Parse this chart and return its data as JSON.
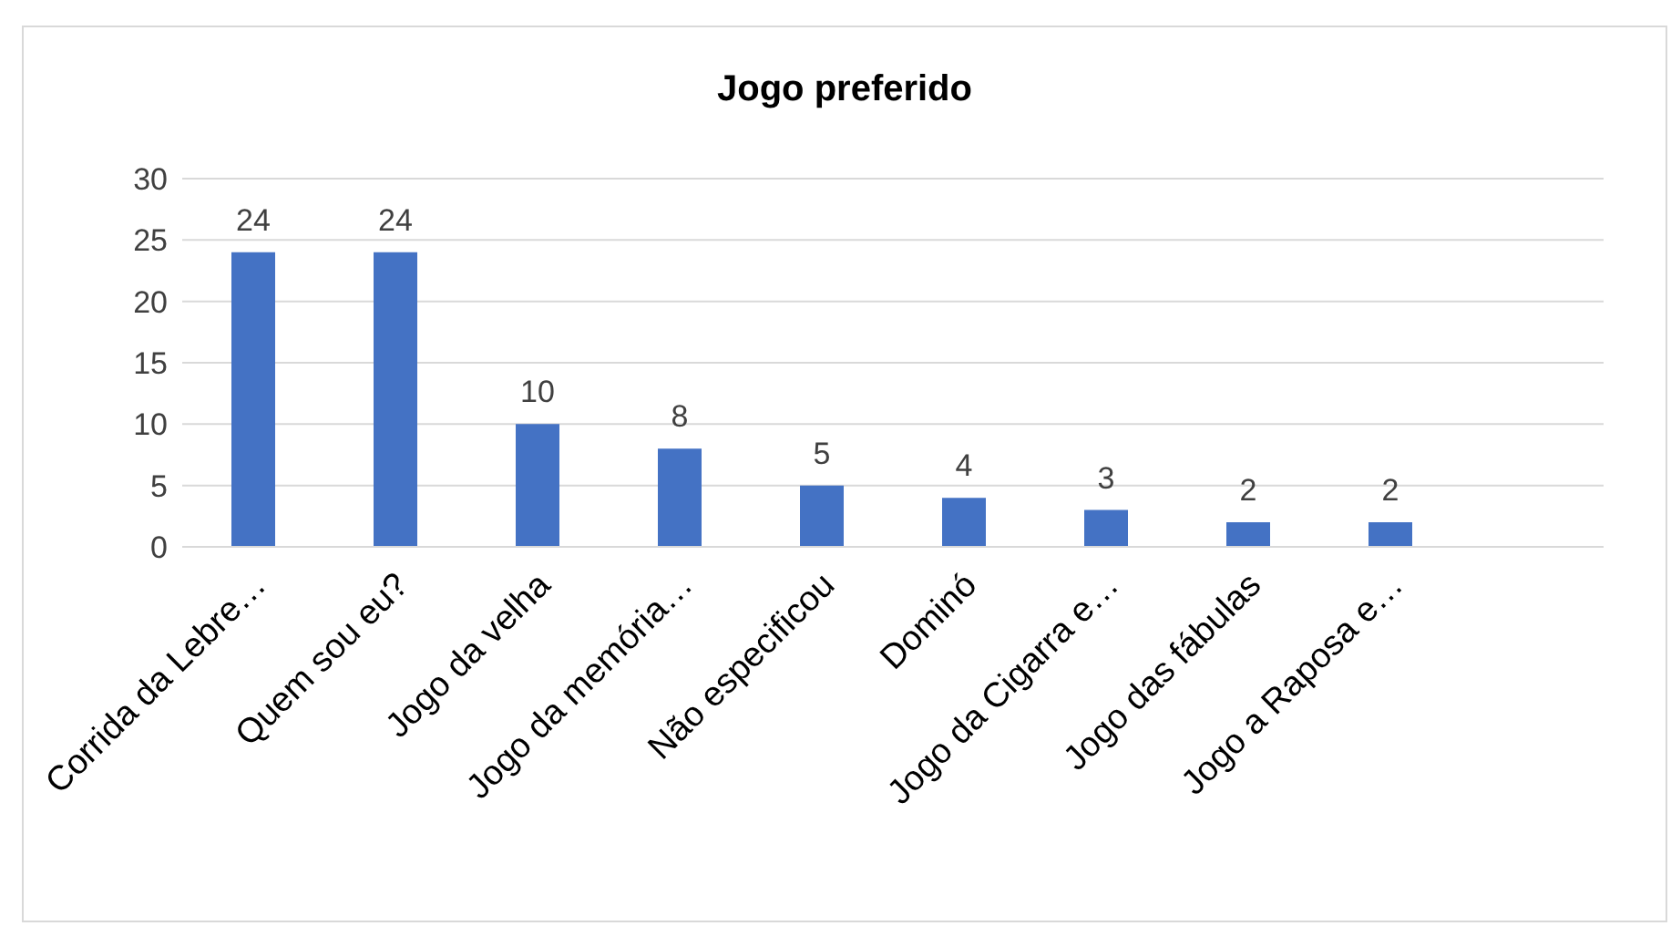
{
  "chart_data": {
    "type": "bar",
    "title": "Jogo preferido",
    "categories": [
      "Corrida da Lebre…",
      "Quem sou eu?",
      "Jogo da velha",
      "Jogo da memória…",
      "Não especificou",
      "Dominó",
      "Jogo da Cigarra e…",
      "Jogo das fábulas",
      "Jogo a Raposa e…",
      null
    ],
    "values": [
      24,
      24,
      10,
      8,
      5,
      4,
      3,
      2,
      2,
      null
    ],
    "color": "#4472c4",
    "ylim": [
      0,
      30
    ],
    "yticks": [
      0,
      5,
      10,
      15,
      20,
      25,
      30
    ],
    "grid": "y",
    "data_labels": true,
    "legend": false
  }
}
